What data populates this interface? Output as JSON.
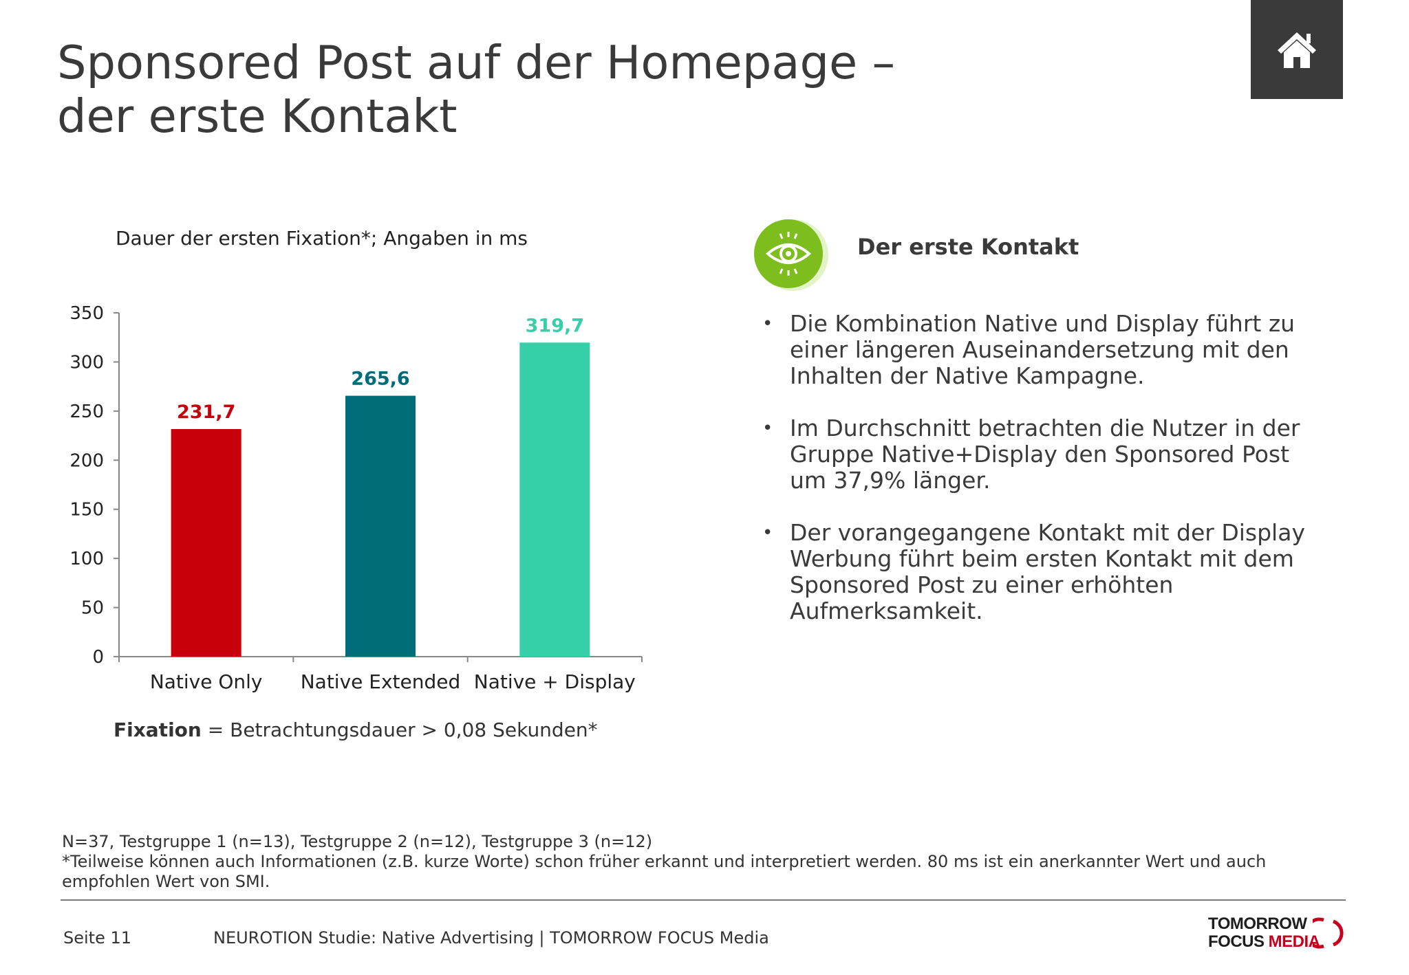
{
  "header": {
    "title_line1": "Sponsored Post auf der Homepage –",
    "title_line2": "der erste Kontakt",
    "home_icon": "home-icon"
  },
  "chart_subtitle": "Dauer der ersten Fixation*; Angaben in ms",
  "chart_data": {
    "type": "bar",
    "categories": [
      "Native Only",
      "Native Extended",
      "Native + Display"
    ],
    "values": [
      231.7,
      265.6,
      319.7
    ],
    "value_labels": [
      "231,7",
      "265,6",
      "319,7"
    ],
    "colors": [
      "#c8000a",
      "#006d79",
      "#35d0a8"
    ],
    "ylim": [
      0,
      350
    ],
    "yticks": [
      0,
      50,
      100,
      150,
      200,
      250,
      300,
      350
    ],
    "grid": false
  },
  "fixation_note": {
    "bold": "Fixation",
    "rest": " = Betrachtungsdauer > 0,08 Sekunden*"
  },
  "panel": {
    "icon": "eye-icon",
    "title": "Der erste Kontakt",
    "bullets": [
      "Die Kombination Native und Display führt zu einer längeren Auseinandersetzung mit den Inhalten der Native Kampagne.",
      "Im Durchschnitt betrachten die Nutzer in der Gruppe Native+Display den Sponsored Post um 37,9% länger.",
      "Der vorangegangene Kontakt mit der Display Werbung führt beim ersten Kontakt mit dem Sponsored Post zu einer erhöhten Aufmerksamkeit."
    ]
  },
  "footnote": {
    "line1": "N=37, Testgruppe 1 (n=13), Testgruppe 2 (n=12), Testgruppe 3 (n=12)",
    "line2": "*Teilweise können auch Informationen (z.B. kurze Worte) schon früher erkannt und interpretiert werden. 80 ms ist ein anerkannter Wert und auch empfohlen Wert von SMI."
  },
  "footer": {
    "page": "Seite 11",
    "text": "NEUROTION Studie: Native Advertising | TOMORROW FOCUS Media",
    "logo_line1": "TOMORROW",
    "logo_line2a": "FOCUS",
    "logo_line2b": "MEDIA"
  },
  "colors": {
    "text": "#3a3a3a",
    "home_bg": "#3a3a3a",
    "eye_green": "#7dbd1e",
    "eye_green_light": "#d9f0b8",
    "brand_red": "#c8001e"
  }
}
